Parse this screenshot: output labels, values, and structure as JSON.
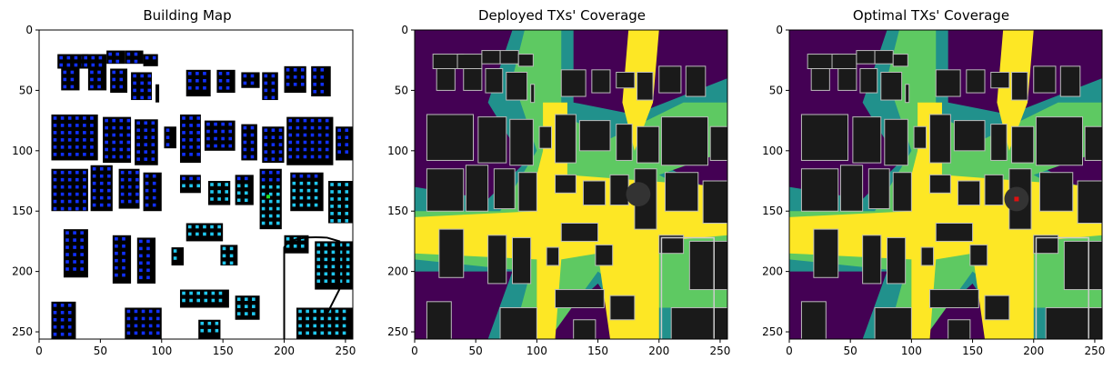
{
  "figure": {
    "panels": [
      {
        "title": "Building Map"
      },
      {
        "title": "Deployed TXs' Coverage"
      },
      {
        "title": "Optimal TXs' Coverage"
      }
    ],
    "x_ticks": [
      "0",
      "50",
      "100",
      "150",
      "200",
      "250"
    ],
    "y_ticks": [
      "0",
      "50",
      "100",
      "150",
      "200",
      "250"
    ],
    "axis_range": [
      0,
      256
    ],
    "colors": {
      "building": "#000000",
      "tx_dark": "#1030ff",
      "tx_light": "#20c8f0",
      "tx_selected": "#20e020",
      "cov_low": "#440154",
      "cov_mid1": "#21918c",
      "cov_mid2": "#5ec962",
      "cov_high": "#fde725",
      "building_gray": "#1a1a1a",
      "optimal_tx": "#e01010"
    }
  }
}
